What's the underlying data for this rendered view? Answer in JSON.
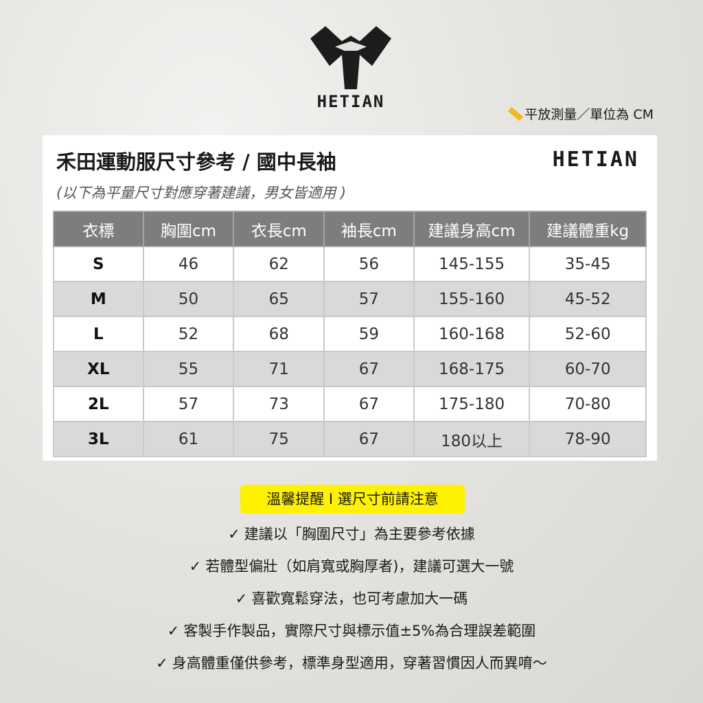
{
  "header": {
    "logo_text": "HETIAN",
    "unit_note": "平放測量／單位為 CM",
    "ruler_icon": "ruler-icon"
  },
  "card": {
    "title": "禾田運動服尺寸參考 / 國中長袖",
    "brand": "HETIAN",
    "subtitle": "(以下為平量尺寸對應穿著建議，男女皆適用 )"
  },
  "table": {
    "headers": [
      "衣標",
      "胸圍cm",
      "衣長cm",
      "袖長cm",
      "建議身高cm",
      "建議體重kg"
    ],
    "rows": [
      [
        "S",
        "46",
        "62",
        "56",
        "145-155",
        "35-45"
      ],
      [
        "M",
        "50",
        "65",
        "57",
        "155-160",
        "45-52"
      ],
      [
        "L",
        "52",
        "68",
        "59",
        "160-168",
        "52-60"
      ],
      [
        "XL",
        "55",
        "71",
        "67",
        "168-175",
        "60-70"
      ],
      [
        "2L",
        "57",
        "73",
        "67",
        "175-180",
        "70-80"
      ],
      [
        "3L",
        "61",
        "75",
        "67",
        "180以上",
        "78-90"
      ]
    ]
  },
  "notice": {
    "label": "溫馨提醒 I 選尺寸前請注意",
    "color": "#fff200"
  },
  "tips": {
    "check": "✓",
    "items": [
      "建議以「胸圍尺寸」為主要參考依據",
      "若體型偏壯（如肩寬或胸厚者)，建議可選大一號",
      "喜歡寬鬆穿法，也可考慮加大一碼",
      "客製手作製品，實際尺寸與標示值±5%為合理誤差範圍",
      "身高體重僅供參考，標準身型適用，穿著習慣因人而異唷～"
    ]
  }
}
